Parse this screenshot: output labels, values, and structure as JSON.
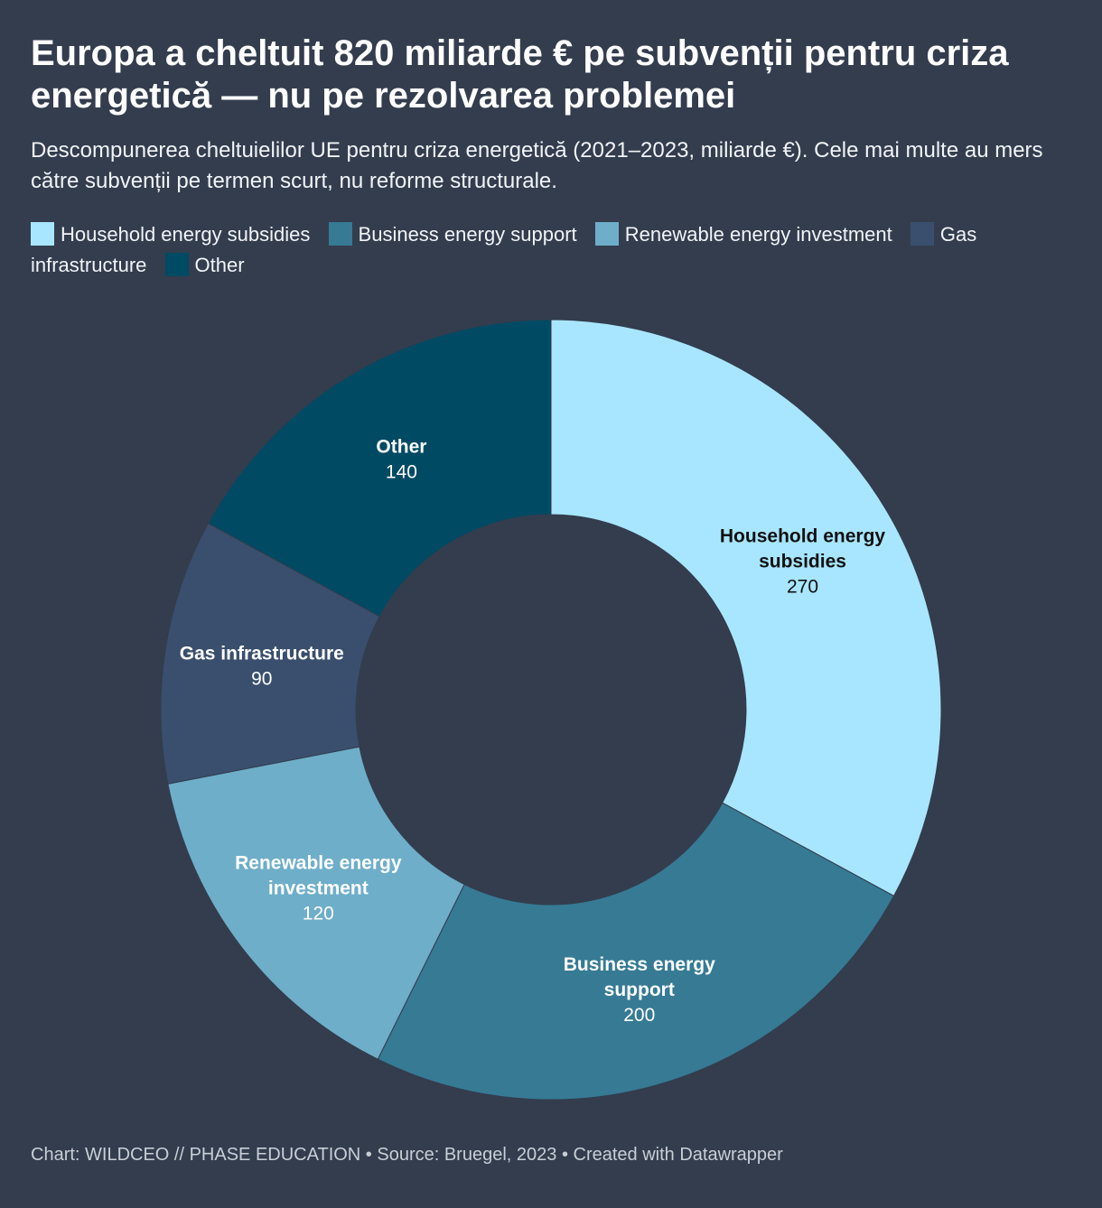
{
  "title": "Europa a cheltuit 820 miliarde € pe subvenții pentru criza energetică — nu pe rezolvarea problemei",
  "subtitle": "Descompunerea cheltuielilor UE pentru criza energetică (2021–2023, miliarde €). Cele mai multe au mers către subvenții pe termen scurt, nu reforme structurale.",
  "footer": "Chart: WILDCEO // PHASE EDUCATION • Source: Bruegel, 2023 • Created with Datawrapper",
  "colors": {
    "background": "#333d4e"
  },
  "chart_data": {
    "type": "pie",
    "variant": "donut",
    "title": "Europa a cheltuit 820 miliarde € pe subvenții pentru criza energetică — nu pe rezolvarea problemei",
    "unit": "miliarde €",
    "legend_position": "top",
    "slices": [
      {
        "label": "Household energy subsidies",
        "value": 270,
        "color": "#a8e6ff",
        "label_color": "#111111"
      },
      {
        "label": "Business energy support",
        "value": 200,
        "color": "#367a94",
        "label_color": "#ffffff"
      },
      {
        "label": "Renewable energy investment",
        "value": 120,
        "color": "#6eaec9",
        "label_color": "#ffffff"
      },
      {
        "label": "Gas infrastructure",
        "value": 90,
        "color": "#3a4f6d",
        "label_color": "#ffffff"
      },
      {
        "label": "Other",
        "value": 140,
        "color": "#004a63",
        "label_color": "#ffffff"
      }
    ]
  }
}
